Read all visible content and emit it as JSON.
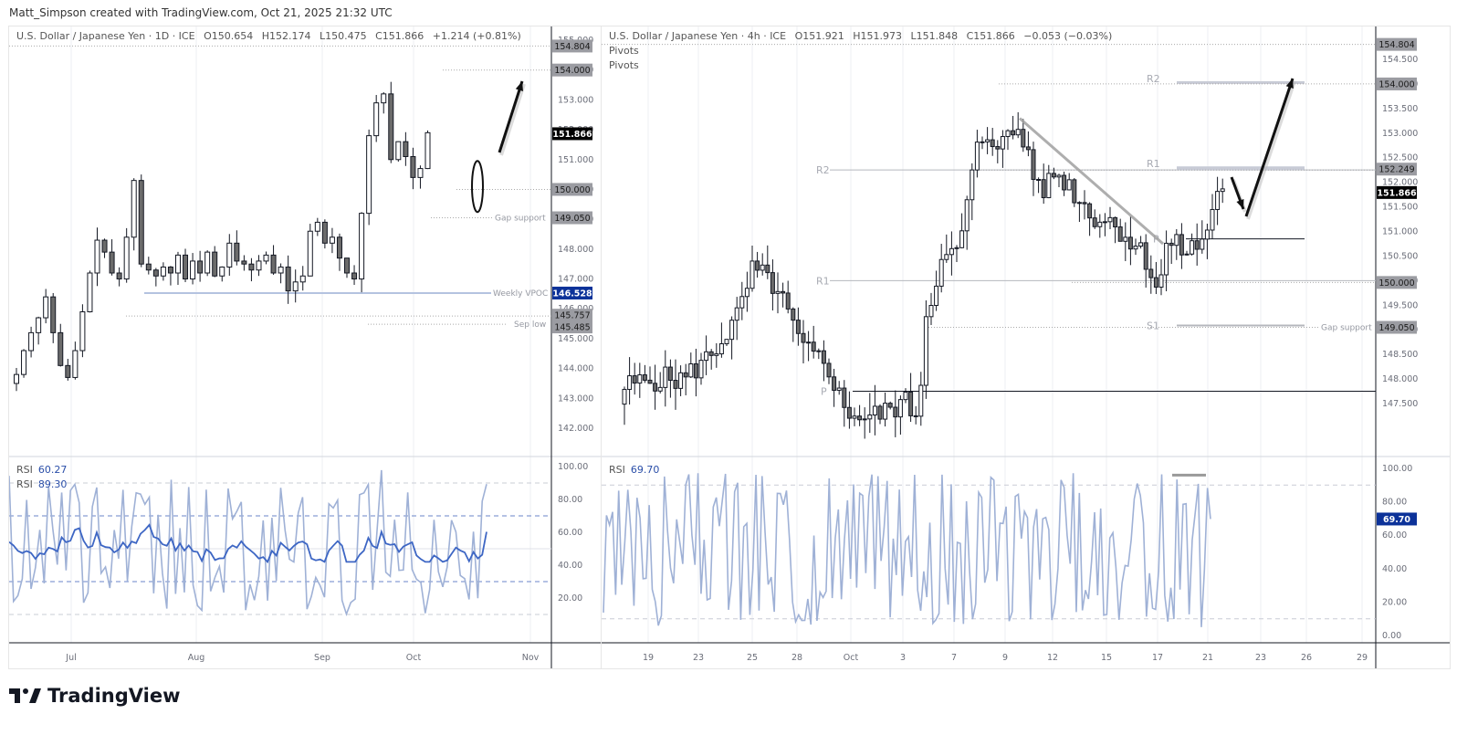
{
  "credit": "Matt_Simpson created with TradingView.com, Oct 21, 2025 21:32 UTC",
  "brand": "TradingView",
  "colors": {
    "candle_border": "#131722",
    "candle_down_fill": "#6b6b6b",
    "candle_up_fill": "#ffffff",
    "rsi_fast": "#9fb1d6",
    "rsi_slow": "#3d66c4",
    "vpoc": "#b4c3e0",
    "price_tag_bg": "#000000",
    "blue_tag_bg": "#0c3299",
    "grey_tag_bg": "#9b9ca2",
    "grid": "#eeeff3"
  },
  "left_chart": {
    "header": {
      "symbol": "U.S. Dollar / Japanese Yen · 1D · ICE",
      "open": "O150.654",
      "high": "H152.174",
      "low": "L150.475",
      "close": "C151.866",
      "change": "+1.214 (+0.81%)"
    },
    "price_axis": [
      "155.000",
      "154.000",
      "153.000",
      "152.000",
      "151.000",
      "150.000",
      "149.000",
      "148.000",
      "147.000",
      "146.000",
      "145.000",
      "144.000",
      "143.000",
      "142.000"
    ],
    "tags": [
      {
        "label": "154.804",
        "style": "grey"
      },
      {
        "label": "154.000",
        "style": "grey"
      },
      {
        "label": "151.866",
        "style": "black"
      },
      {
        "label": "150.000",
        "style": "grey"
      },
      {
        "label": "149.050",
        "style": "grey"
      },
      {
        "label": "146.528",
        "style": "blue"
      },
      {
        "label": "145.757",
        "style": "grey"
      },
      {
        "label": "145.485",
        "style": "grey"
      }
    ],
    "annotations": {
      "gap_support": "Gap support",
      "weekly_vpoc": "Weekly VPOC",
      "sep_low": "Sep low"
    },
    "time_axis": [
      "Jul",
      "Aug",
      "Sep",
      "Oct",
      "Nov"
    ],
    "rsi": {
      "label1": "RSI",
      "value1": "60.27",
      "label2": "RSI",
      "value2": "89.30",
      "axis": [
        "100.00",
        "80.00",
        "60.00",
        "40.00",
        "20.00"
      ]
    }
  },
  "right_chart": {
    "header": {
      "symbol": "U.S. Dollar / Japanese Yen · 4h · ICE",
      "open": "O151.921",
      "high": "H151.973",
      "low": "L151.848",
      "close": "C151.866",
      "change": "−0.053 (−0.03%)",
      "indicator1": "Pivots",
      "indicator2": "Pivots"
    },
    "price_axis": [
      "154.500",
      "154.000",
      "153.500",
      "153.000",
      "152.500",
      "152.000",
      "151.500",
      "151.000",
      "150.500",
      "150.000",
      "149.500",
      "149.000",
      "148.500",
      "148.000",
      "147.500"
    ],
    "tags": [
      {
        "label": "154.804",
        "style": "grey"
      },
      {
        "label": "154.000",
        "style": "grey"
      },
      {
        "label": "152.249",
        "style": "grey"
      },
      {
        "label": "151.866",
        "style": "black"
      },
      {
        "label": "150.000",
        "style": "grey"
      },
      {
        "label": "149.050",
        "style": "grey"
      }
    ],
    "pivots": {
      "r2_left": "R2",
      "r1_left": "R1",
      "p_left": "P",
      "r2_right": "R2",
      "r1_right": "R1",
      "p_right": "P",
      "s1_right": "S1"
    },
    "annotations": {
      "gap_support": "Gap support"
    },
    "time_axis": [
      "19",
      "23",
      "25",
      "28",
      "Oct",
      "3",
      "7",
      "9",
      "12",
      "15",
      "17",
      "21",
      "23",
      "26",
      "29"
    ],
    "rsi": {
      "label": "RSI",
      "value": "69.70",
      "axis": [
        "100.00",
        "80.00",
        "60.00",
        "40.00",
        "20.00",
        "0.00"
      ]
    }
  },
  "chart_data": [
    {
      "type": "candlestick",
      "title": "U.S. Dollar / Japanese Yen · 1D · ICE",
      "ohlc_last": {
        "open": 150.654,
        "high": 152.174,
        "low": 150.475,
        "close": 151.866,
        "change": 1.214,
        "change_pct": 0.81
      },
      "ylim": [
        141.5,
        155.0
      ],
      "x_ticks": [
        "Jul",
        "Aug",
        "Sep",
        "Oct",
        "Nov"
      ],
      "horizontal_levels": [
        {
          "label": "Weekly VPOC",
          "value": 146.528
        },
        {
          "label": "Sep low",
          "value": 145.485
        },
        {
          "label": "Gap support",
          "value": 149.05
        },
        {
          "label": "",
          "value": 150.0
        },
        {
          "label": "",
          "value": 154.0
        },
        {
          "label": "",
          "value": 145.757
        }
      ],
      "close_series_approx": [
        143.8,
        144.6,
        145.2,
        145.7,
        146.4,
        145.2,
        144.1,
        143.7,
        144.6,
        145.9,
        147.2,
        148.3,
        147.9,
        147.2,
        147.0,
        148.4,
        150.3,
        147.5,
        147.3,
        147.1,
        147.4,
        147.2,
        147.8,
        147.0,
        147.6,
        147.2,
        147.9,
        147.1,
        147.4,
        148.2,
        147.6,
        147.5,
        147.3,
        147.6,
        147.8,
        147.2,
        147.4,
        146.6,
        146.9,
        147.1,
        148.6,
        148.9,
        148.2,
        148.4,
        147.7,
        147.2,
        147.0,
        149.2,
        151.8,
        152.9,
        153.2,
        151.0,
        151.6,
        151.1,
        150.4,
        150.7,
        151.9
      ],
      "annotations": [
        "Upward arrow toward 154.000",
        "Ellipse around long-wick candle near 150.000"
      ]
    },
    {
      "type": "line",
      "title": "RSI (1D)",
      "series": [
        {
          "name": "RSI",
          "last": 60.27
        },
        {
          "name": "RSI fast",
          "last": 89.3
        }
      ],
      "ylim": [
        0,
        100
      ],
      "bands": [
        30,
        50,
        70
      ],
      "y_ticks": [
        20,
        40,
        60,
        80,
        100
      ]
    },
    {
      "type": "candlestick",
      "title": "U.S. Dollar / Japanese Yen · 4h · ICE",
      "ohlc_last": {
        "open": 151.921,
        "high": 151.973,
        "low": 151.848,
        "close": 151.866,
        "change": -0.053,
        "change_pct": -0.03
      },
      "ylim": [
        147.2,
        154.9
      ],
      "x_ticks": [
        "19",
        "23",
        "25",
        "28",
        "Oct",
        "3",
        "7",
        "9",
        "12",
        "15",
        "17",
        "21",
        "23",
        "26",
        "29"
      ],
      "pivots": {
        "prior_week": {
          "R2": 152.25,
          "R1": 150.0,
          "P": 147.75
        },
        "current_week": {
          "R2": 154.0,
          "R1": 152.249,
          "P": 150.85,
          "S1": 149.05
        }
      },
      "horizontal_levels": [
        {
          "label": "Gap support",
          "value": 149.05
        },
        {
          "label": "",
          "value": 154.804
        }
      ],
      "annotations": [
        "Descending trendline from ~153.2 (Oct 10) to ~150.8 (Oct 18)",
        "Down arrow then up arrow toward 154.000"
      ]
    },
    {
      "type": "line",
      "title": "RSI (4h)",
      "series": [
        {
          "name": "RSI",
          "last": 69.7
        }
      ],
      "ylim": [
        0,
        100
      ],
      "bands": [
        10,
        90
      ],
      "y_ticks": [
        0,
        20,
        40,
        60,
        80,
        100
      ]
    }
  ]
}
